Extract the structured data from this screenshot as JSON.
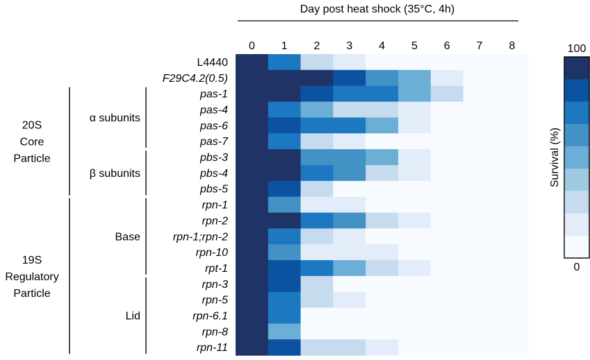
{
  "chart_data": {
    "type": "heatmap",
    "title": "Day post heat shock (35°C, 4h)",
    "x": [
      "0",
      "1",
      "2",
      "3",
      "4",
      "5",
      "6",
      "7",
      "8"
    ],
    "rows": [
      {
        "name": "L4440",
        "italic": false,
        "values": [
          100,
          80,
          30,
          15,
          5,
          5,
          5,
          5,
          5
        ]
      },
      {
        "name": "F29C4.2(0.5)",
        "italic": true,
        "values": [
          100,
          100,
          95,
          85,
          65,
          50,
          15,
          5,
          5
        ]
      },
      {
        "name": "pas-1",
        "italic": true,
        "values": [
          100,
          100,
          85,
          75,
          75,
          50,
          30,
          5,
          5
        ]
      },
      {
        "name": "pas-4",
        "italic": true,
        "values": [
          100,
          75,
          45,
          30,
          30,
          15,
          5,
          5,
          5
        ]
      },
      {
        "name": "pas-6",
        "italic": true,
        "values": [
          100,
          85,
          70,
          70,
          45,
          15,
          5,
          5,
          5
        ]
      },
      {
        "name": "pas-7",
        "italic": true,
        "values": [
          100,
          75,
          30,
          15,
          5,
          5,
          5,
          5,
          5
        ]
      },
      {
        "name": "pbs-3",
        "italic": true,
        "values": [
          100,
          95,
          60,
          60,
          45,
          15,
          5,
          5,
          5
        ]
      },
      {
        "name": "pbs-4",
        "italic": true,
        "values": [
          100,
          100,
          70,
          60,
          30,
          15,
          5,
          5,
          5
        ]
      },
      {
        "name": "pbs-5",
        "italic": true,
        "values": [
          100,
          85,
          30,
          5,
          5,
          5,
          5,
          5,
          5
        ]
      },
      {
        "name": "rpn-1",
        "italic": true,
        "values": [
          100,
          60,
          15,
          15,
          5,
          5,
          5,
          5,
          5
        ]
      },
      {
        "name": "rpn-2",
        "italic": true,
        "values": [
          100,
          100,
          75,
          60,
          30,
          15,
          5,
          5,
          5
        ]
      },
      {
        "name": "rpn-1;rpn-2",
        "italic": true,
        "values": [
          100,
          75,
          30,
          15,
          5,
          5,
          5,
          5,
          5
        ]
      },
      {
        "name": "rpn-10",
        "italic": true,
        "values": [
          100,
          60,
          15,
          15,
          15,
          5,
          5,
          5,
          5
        ]
      },
      {
        "name": "rpt-1",
        "italic": true,
        "values": [
          100,
          85,
          75,
          45,
          30,
          15,
          5,
          5,
          5
        ]
      },
      {
        "name": "rpn-3",
        "italic": true,
        "values": [
          100,
          85,
          30,
          5,
          5,
          5,
          5,
          5,
          5
        ]
      },
      {
        "name": "rpn-5",
        "italic": true,
        "values": [
          100,
          75,
          30,
          15,
          5,
          5,
          5,
          5,
          5
        ]
      },
      {
        "name": "rpn-6.1",
        "italic": true,
        "values": [
          100,
          75,
          5,
          5,
          5,
          5,
          5,
          5,
          5
        ]
      },
      {
        "name": "rpn-8",
        "italic": true,
        "values": [
          100,
          45,
          5,
          5,
          5,
          5,
          5,
          5,
          5
        ]
      },
      {
        "name": "rpn-11",
        "italic": true,
        "values": [
          100,
          85,
          30,
          30,
          15,
          5,
          5,
          5,
          5
        ]
      }
    ],
    "groups": [
      {
        "label": [
          "20S",
          "Core",
          "Particle"
        ],
        "from": 2,
        "to": 8
      },
      {
        "label": [
          "19S",
          "Regulatory",
          "Particle"
        ],
        "from": 9,
        "to": 18
      }
    ],
    "subgroups": [
      {
        "label": "α subunits",
        "from": 2,
        "to": 5
      },
      {
        "label": "β subunits",
        "from": 6,
        "to": 8
      },
      {
        "label": "Base",
        "from": 9,
        "to": 13
      },
      {
        "label": "Lid",
        "from": 14,
        "to": 18
      }
    ],
    "colorbar": {
      "label": "Survival (%)",
      "max_label": "100",
      "min_label": "0",
      "min": 0,
      "max": 100
    },
    "palette": [
      "#f7fbff",
      "#e3edf9",
      "#c7dbef",
      "#9ecae1",
      "#6baed6",
      "#4292c6",
      "#1c79c1",
      "#0b52a0",
      "#203366"
    ]
  }
}
